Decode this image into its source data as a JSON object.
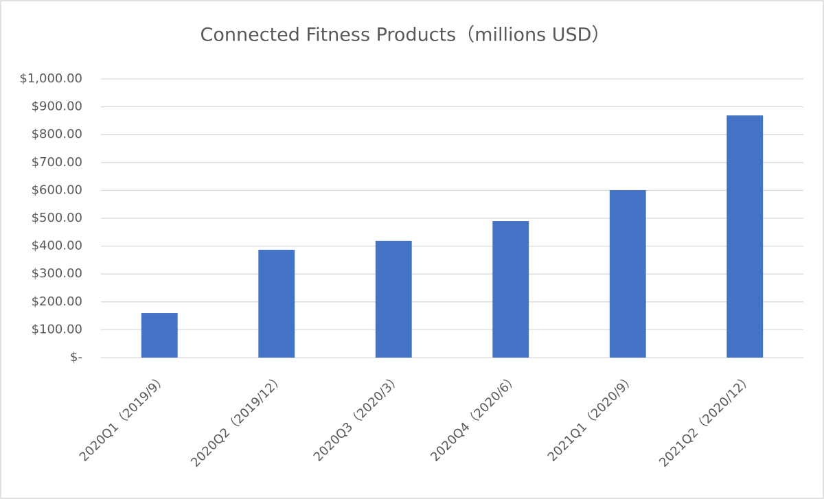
{
  "chart_data": {
    "type": "bar",
    "title": "Connected Fitness Products（millions USD）",
    "categories": [
      "2020Q1（2019/9）",
      "2020Q2（2019/12）",
      "2020Q3（2020/3）",
      "2020Q4（2020/6）",
      "2021Q1（2020/9）",
      "2021Q2（2020/12）"
    ],
    "values": [
      160,
      387,
      419,
      490,
      601,
      869
    ],
    "color": "#4472c4",
    "ylim": [
      0,
      1000
    ],
    "yticks": [
      {
        "value": 0,
        "label": "$-"
      },
      {
        "value": 100,
        "label": "$100.00"
      },
      {
        "value": 200,
        "label": "$200.00"
      },
      {
        "value": 300,
        "label": "$300.00"
      },
      {
        "value": 400,
        "label": "$400.00"
      },
      {
        "value": 500,
        "label": "$500.00"
      },
      {
        "value": 600,
        "label": "$600.00"
      },
      {
        "value": 700,
        "label": "$700.00"
      },
      {
        "value": 800,
        "label": "$800.00"
      },
      {
        "value": 900,
        "label": "$900.00"
      },
      {
        "value": 1000,
        "label": "$1,000.00"
      }
    ],
    "grid": true
  }
}
